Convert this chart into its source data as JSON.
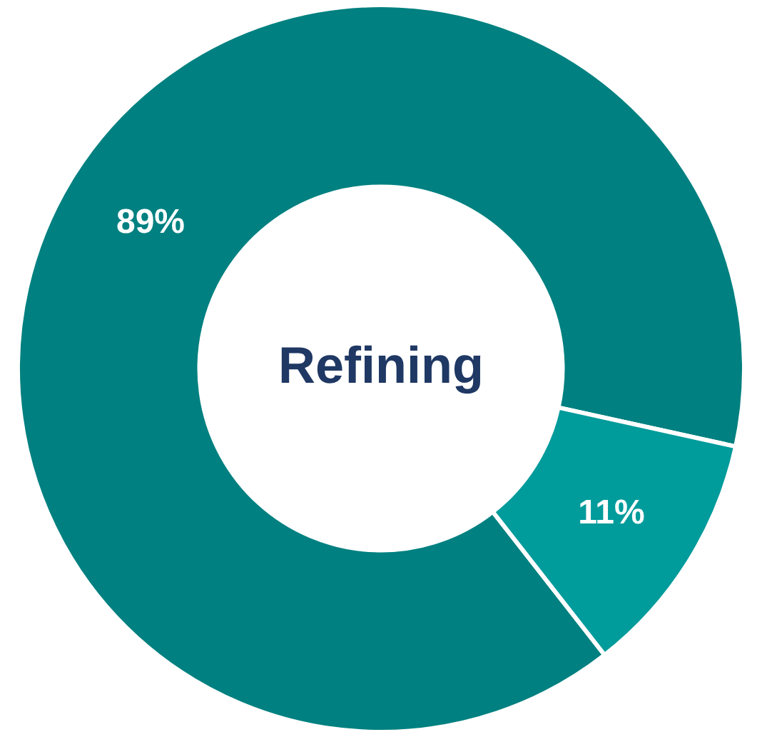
{
  "chart_data": {
    "type": "donut",
    "title": "Refining",
    "categories": [
      null,
      null
    ],
    "values": [
      89,
      11
    ],
    "colors": [
      "#008080",
      "#009b9b"
    ],
    "value_labels": [
      "89%",
      "11%"
    ],
    "legend": false
  }
}
